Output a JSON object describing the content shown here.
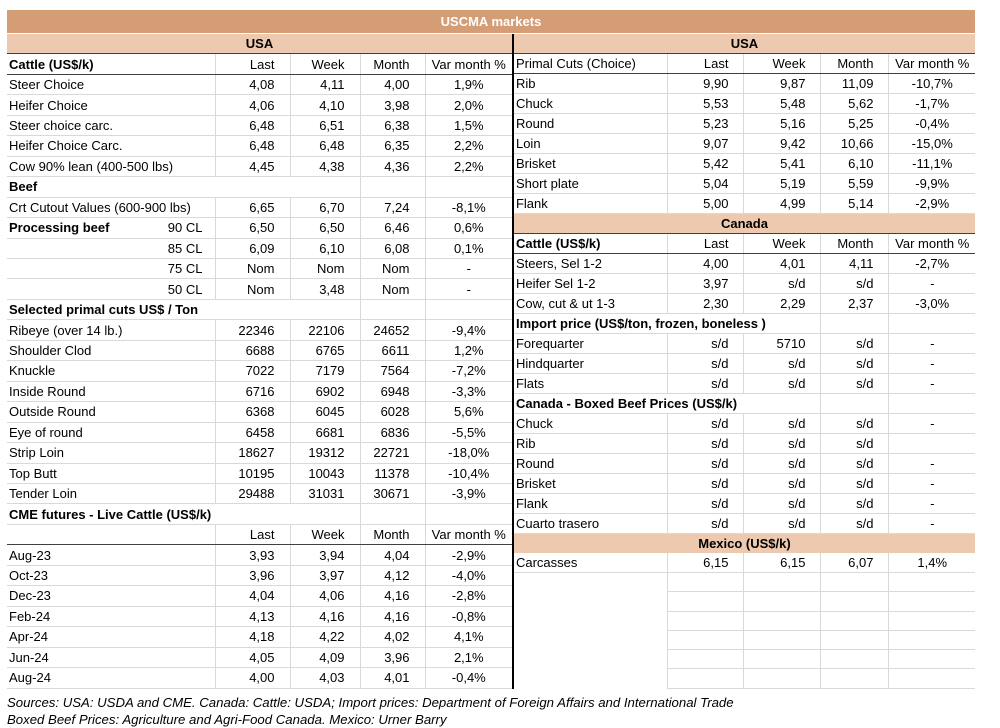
{
  "title": "USCMA markets",
  "colors": {
    "title_bg": "#d49d76",
    "band_bg": "#ecc9af",
    "grid_light": "#d9d9d9",
    "grid_dark": "#404040",
    "divider": "#000000"
  },
  "left_table": {
    "rows": [
      {
        "t": "band",
        "c": [
          "USA"
        ]
      },
      {
        "t": "head",
        "c": [
          "Cattle (US$/k)",
          "Last",
          "Week",
          "Month",
          "Var month %"
        ]
      },
      {
        "t": "row",
        "c": [
          "Steer Choice",
          "4,08",
          "4,11",
          "4,00",
          "1,9%"
        ]
      },
      {
        "t": "row",
        "c": [
          "Heifer Choice",
          "4,06",
          "4,10",
          "3,98",
          "2,0%"
        ]
      },
      {
        "t": "row",
        "c": [
          "Steer choice carc.",
          "6,48",
          "6,51",
          "6,38",
          "1,5%"
        ]
      },
      {
        "t": "row",
        "c": [
          "Heifer Choice Carc.",
          "6,48",
          "6,48",
          "6,35",
          "2,2%"
        ]
      },
      {
        "t": "row",
        "c": [
          "Cow 90% lean (400-500 lbs)",
          "4,45",
          "4,38",
          "4,36",
          "2,2%"
        ]
      },
      {
        "t": "sec",
        "c": [
          "Beef",
          "",
          "",
          ""
        ]
      },
      {
        "t": "row",
        "c": [
          "Crt Cutout Values (600-900 lbs)",
          "6,65",
          "6,70",
          "7,24",
          "-8,1%"
        ]
      },
      {
        "t": "row2",
        "b": "Processing beef",
        "r": "90 CL",
        "c": [
          "",
          "6,50",
          "6,50",
          "6,46",
          "0,6%"
        ]
      },
      {
        "t": "rowr",
        "c": [
          "85 CL",
          "6,09",
          "6,10",
          "6,08",
          "0,1%"
        ]
      },
      {
        "t": "rowr",
        "c": [
          "75 CL",
          "Nom",
          "Nom",
          "Nom",
          "-"
        ]
      },
      {
        "t": "rowr",
        "c": [
          "50 CL",
          "Nom",
          "3,48",
          "Nom",
          "-"
        ]
      },
      {
        "t": "sec",
        "c": [
          "Selected primal cuts US$ / Ton",
          "",
          "",
          ""
        ]
      },
      {
        "t": "row",
        "c": [
          "Ribeye (over 14 lb.)",
          "22346",
          "22106",
          "24652",
          "-9,4%"
        ]
      },
      {
        "t": "row",
        "c": [
          "Shoulder Clod",
          "6688",
          "6765",
          "6611",
          "1,2%"
        ]
      },
      {
        "t": "row",
        "c": [
          "Knuckle",
          "7022",
          "7179",
          "7564",
          "-7,2%"
        ]
      },
      {
        "t": "row",
        "c": [
          "Inside Round",
          "6716",
          "6902",
          "6948",
          "-3,3%"
        ]
      },
      {
        "t": "row",
        "c": [
          "Outside Round",
          "6368",
          "6045",
          "6028",
          "5,6%"
        ]
      },
      {
        "t": "row",
        "c": [
          "Eye of round",
          "6458",
          "6681",
          "6836",
          "-5,5%"
        ]
      },
      {
        "t": "row",
        "c": [
          "Strip Loin",
          "18627",
          "19312",
          "22721",
          "-18,0%"
        ]
      },
      {
        "t": "row",
        "c": [
          "Top Butt",
          "10195",
          "10043",
          "11378",
          "-10,4%"
        ]
      },
      {
        "t": "row",
        "c": [
          "Tender Loin",
          "29488",
          "31031",
          "30671",
          "-3,9%"
        ]
      },
      {
        "t": "sec",
        "c": [
          "CME futures - Live Cattle (US$/k)",
          "",
          "",
          ""
        ]
      },
      {
        "t": "head",
        "c": [
          "",
          "Last",
          "Week",
          "Month",
          "Var month %"
        ]
      },
      {
        "t": "row",
        "c": [
          "Aug-23",
          "3,93",
          "3,94",
          "4,04",
          "-2,9%"
        ]
      },
      {
        "t": "row",
        "c": [
          "Oct-23",
          "3,96",
          "3,97",
          "4,12",
          "-4,0%"
        ]
      },
      {
        "t": "row",
        "c": [
          "Dec-23",
          "4,04",
          "4,06",
          "4,16",
          "-2,8%"
        ]
      },
      {
        "t": "row",
        "c": [
          "Feb-24",
          "4,13",
          "4,16",
          "4,16",
          "-0,8%"
        ]
      },
      {
        "t": "row",
        "c": [
          "Apr-24",
          "4,18",
          "4,22",
          "4,02",
          "4,1%"
        ]
      },
      {
        "t": "row",
        "c": [
          "Jun-24",
          "4,05",
          "4,09",
          "3,96",
          "2,1%"
        ]
      },
      {
        "t": "row",
        "c": [
          "Aug-24",
          "4,00",
          "4,03",
          "4,01",
          "-0,4%"
        ]
      }
    ]
  },
  "right_table": {
    "rows": [
      {
        "t": "band",
        "c": [
          "USA"
        ]
      },
      {
        "t": "headr",
        "c": [
          "Primal Cuts (Choice)",
          "Last",
          "Week",
          "Month",
          "Var month %"
        ]
      },
      {
        "t": "row",
        "c": [
          "Rib",
          "9,90",
          "9,87",
          "11,09",
          "-10,7%"
        ]
      },
      {
        "t": "row",
        "c": [
          "Chuck",
          "5,53",
          "5,48",
          "5,62",
          "-1,7%"
        ]
      },
      {
        "t": "row",
        "c": [
          "Round",
          "5,23",
          "5,16",
          "5,25",
          "-0,4%"
        ]
      },
      {
        "t": "row",
        "c": [
          "Loin",
          "9,07",
          "9,42",
          "10,66",
          "-15,0%"
        ]
      },
      {
        "t": "row",
        "c": [
          "Brisket",
          "5,42",
          "5,41",
          "6,10",
          "-11,1%"
        ]
      },
      {
        "t": "row",
        "c": [
          "Short plate",
          "5,04",
          "5,19",
          "5,59",
          "-9,9%"
        ]
      },
      {
        "t": "row",
        "c": [
          "Flank",
          "5,00",
          "4,99",
          "5,14",
          "-2,9%"
        ]
      },
      {
        "t": "band",
        "c": [
          "Canada"
        ]
      },
      {
        "t": "head",
        "c": [
          "Cattle (US$/k)",
          "Last",
          "Week",
          "Month",
          "Var month %"
        ]
      },
      {
        "t": "row",
        "c": [
          "Steers, Sel 1-2",
          "4,00",
          "4,01",
          "4,11",
          "-2,7%"
        ]
      },
      {
        "t": "row",
        "c": [
          "Heifer Sel 1-2",
          "3,97",
          "s/d",
          "s/d",
          "-"
        ]
      },
      {
        "t": "row",
        "c": [
          "Cow, cut & ut 1-3",
          "2,30",
          "2,29",
          "2,37",
          "-3,0%"
        ]
      },
      {
        "t": "sec",
        "c": [
          "Import price (US$/ton, frozen, boneless )",
          "",
          "",
          ""
        ]
      },
      {
        "t": "row",
        "c": [
          "Forequarter",
          "s/d",
          "5710",
          "s/d",
          "-"
        ]
      },
      {
        "t": "row",
        "c": [
          "Hindquarter",
          "s/d",
          "s/d",
          "s/d",
          "-"
        ]
      },
      {
        "t": "row",
        "c": [
          "Flats",
          "s/d",
          "s/d",
          "s/d",
          "-"
        ]
      },
      {
        "t": "sec",
        "c": [
          "Canada - Boxed Beef Prices (US$/k)",
          "",
          "",
          ""
        ]
      },
      {
        "t": "row",
        "c": [
          "Chuck",
          "s/d",
          "s/d",
          "s/d",
          "-"
        ]
      },
      {
        "t": "row",
        "c": [
          "Rib",
          "s/d",
          "s/d",
          "s/d",
          ""
        ]
      },
      {
        "t": "row",
        "c": [
          "Round",
          "s/d",
          "s/d",
          "s/d",
          "-"
        ]
      },
      {
        "t": "row",
        "c": [
          "Brisket",
          "s/d",
          "s/d",
          "s/d",
          "-"
        ]
      },
      {
        "t": "row",
        "c": [
          "Flank",
          "s/d",
          "s/d",
          "s/d",
          "-"
        ]
      },
      {
        "t": "row",
        "c": [
          "Cuarto trasero",
          "s/d",
          "s/d",
          "s/d",
          "-"
        ]
      },
      {
        "t": "band",
        "c": [
          "Mexico (US$/k)"
        ]
      },
      {
        "t": "row",
        "c": [
          "Carcasses",
          "6,15",
          "6,15",
          "6,07",
          "1,4%"
        ]
      },
      {
        "t": "blank"
      },
      {
        "t": "blank"
      },
      {
        "t": "blank"
      },
      {
        "t": "blank"
      },
      {
        "t": "blank"
      },
      {
        "t": "blank"
      }
    ]
  },
  "sources": {
    "line1": "Sources: USA: USDA and CME. Canada: Cattle: USDA; Import prices: Department of Foreign Affairs and International Trade",
    "line2": "Boxed Beef Prices: Agriculture and Agri-Food Canada. Mexico: Urner Barry"
  }
}
